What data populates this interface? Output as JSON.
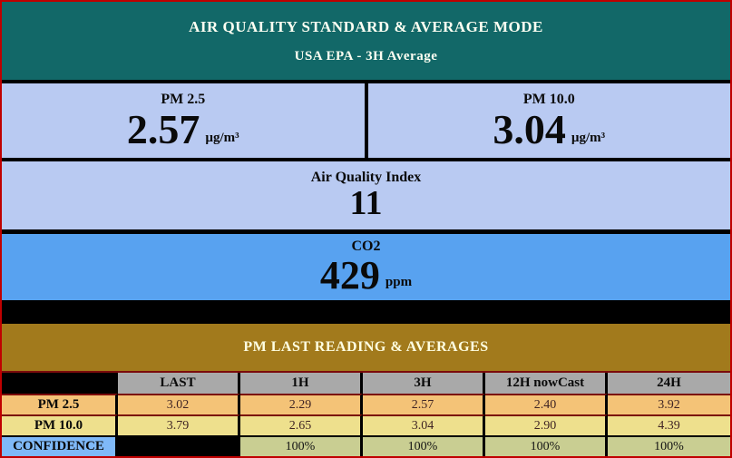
{
  "header": {
    "title": "AIR QUALITY STANDARD & AVERAGE MODE",
    "subtitle": "USA EPA - 3H Average"
  },
  "readings": {
    "pm25": {
      "label": "PM 2.5",
      "value": "2.57",
      "unit": "µg/m³"
    },
    "pm10": {
      "label": "PM 10.0",
      "value": "3.04",
      "unit": "µg/m³"
    },
    "aqi": {
      "label": "Air Quality Index",
      "value": "11"
    },
    "co2": {
      "label": "CO2",
      "value": "429",
      "unit": "ppm"
    }
  },
  "averages": {
    "title": "PM LAST READING & AVERAGES",
    "columns": [
      "",
      "LAST",
      "1H",
      "3H",
      "12H nowCast",
      "24H"
    ],
    "rows": [
      {
        "label": "PM 2.5",
        "values": [
          "3.02",
          "2.29",
          "2.57",
          "2.40",
          "3.92"
        ]
      },
      {
        "label": "PM 10.0",
        "values": [
          "3.79",
          "2.65",
          "3.04",
          "2.90",
          "4.39"
        ]
      },
      {
        "label": "CONFIDENCE",
        "values": [
          "",
          "100%",
          "100%",
          "100%",
          "100%"
        ]
      }
    ]
  },
  "colors": {
    "outer_border": "#C00000",
    "teal_header": "#126868",
    "panel_periwinkle": "#B9CAF2",
    "co2_blue": "#58A2F0",
    "olive_header": "#A27A1C",
    "table_header_gray": "#A9A9A9",
    "pm25_row": "#F4C377",
    "pm10_row": "#EEE08D",
    "confidence_label_blue": "#7FB9F8",
    "confidence_cell_sage": "#C9CE92",
    "row_divider_maroon": "#7B0B0B"
  }
}
